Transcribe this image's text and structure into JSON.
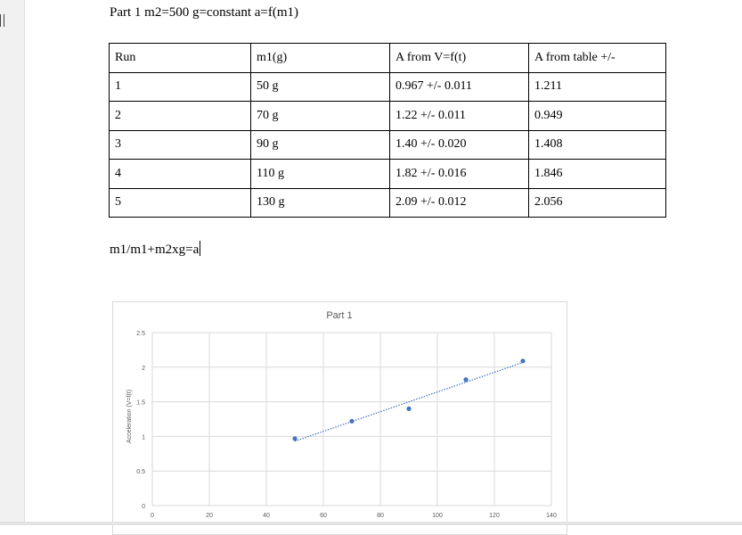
{
  "heading": "Part 1 m2=500 g=constant a=f(m1)",
  "table": {
    "headers": [
      "Run",
      "m1(g)",
      "A from V=f(t)",
      "A from table +/-"
    ],
    "rows": [
      [
        "1",
        "50 g",
        "0.967 +/- 0.011",
        "1.211"
      ],
      [
        "2",
        "70 g",
        "1.22 +/- 0.011",
        "0.949"
      ],
      [
        "3",
        "90 g",
        "1.40 +/- 0.020",
        "1.408"
      ],
      [
        "4",
        "110 g",
        "1.82 +/- 0.016",
        "1.846"
      ],
      [
        "5",
        "130 g",
        "2.09 +/- 0.012",
        "2.056"
      ]
    ]
  },
  "equation": "m1/m1+m2xg=a",
  "chart_data": {
    "type": "scatter",
    "title": "Part 1",
    "xlabel": "",
    "ylabel": "Acceleration (V=f(t)",
    "xlim": [
      0,
      140
    ],
    "ylim": [
      0,
      2.5
    ],
    "xticks": [
      0,
      20,
      40,
      60,
      80,
      100,
      120,
      140
    ],
    "yticks": [
      0,
      0.5,
      1,
      1.5,
      2,
      2.5
    ],
    "grid": true,
    "legend": "none",
    "points": [
      {
        "x": 50,
        "y": 0.967
      },
      {
        "x": 70,
        "y": 1.22
      },
      {
        "x": 90,
        "y": 1.4
      },
      {
        "x": 110,
        "y": 1.82
      },
      {
        "x": 130,
        "y": 2.09
      }
    ],
    "trendline": {
      "type": "linear",
      "style": "dotted"
    },
    "colors": {
      "marker": "#4472c4",
      "grid": "#d9d9d9",
      "axis_text": "#595959"
    }
  }
}
